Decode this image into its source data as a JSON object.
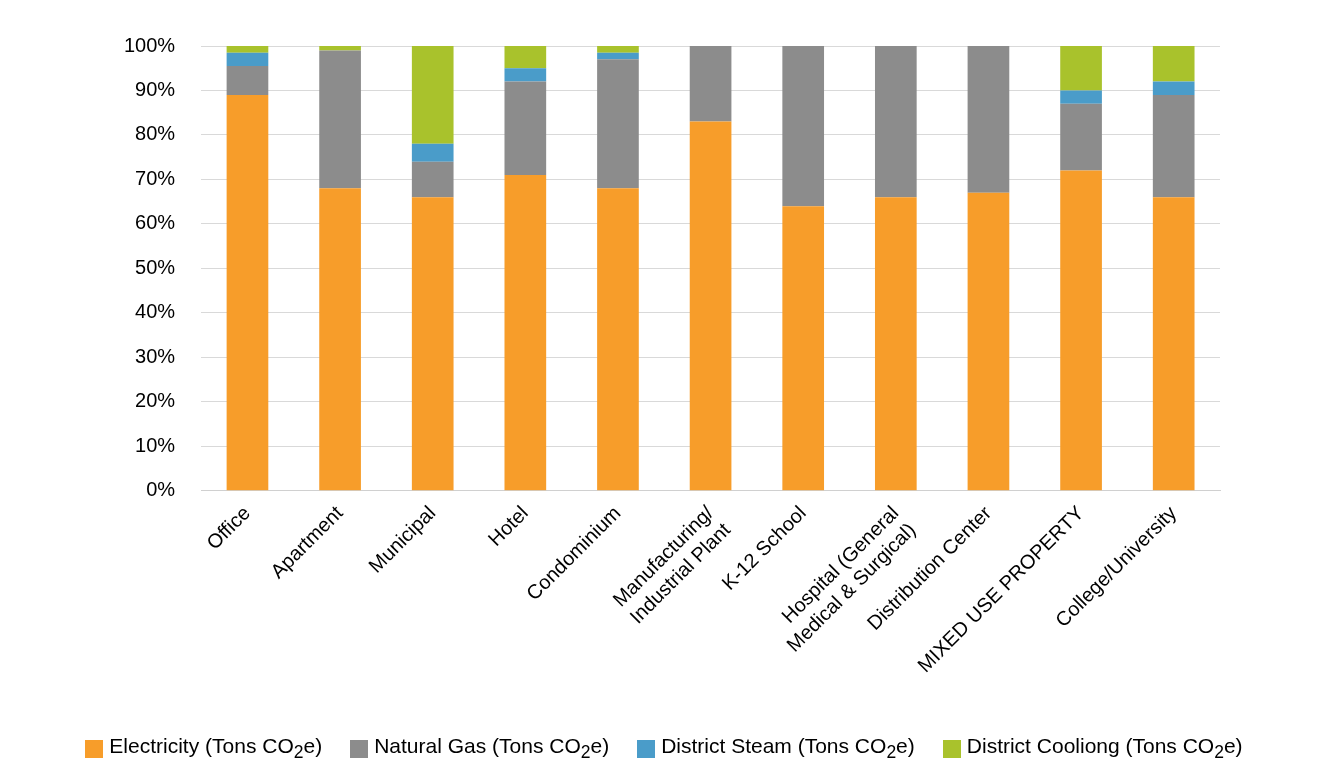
{
  "chart_data": {
    "type": "bar",
    "stacked": true,
    "categories": [
      "Office",
      "Apartment",
      "Municipal",
      "Hotel",
      "Condominium",
      "Manufacturing/\nIndustrial Plant",
      "K-12 School",
      "Hospital (General\nMedical & Surgical)",
      "Distribution Center",
      "MIXED USE PROPERTY",
      "College/University"
    ],
    "series": [
      {
        "name": "Electricity (Tons CO$_{2}$e)",
        "color": "#f79d2a",
        "values": [
          89,
          68,
          66,
          71,
          68,
          83,
          64,
          66,
          67,
          72,
          66
        ]
      },
      {
        "name": "Natural Gas (Tons CO$_{2}$e)",
        "color": "#8c8c8c",
        "values": [
          6.5,
          31,
          8,
          21,
          29,
          17,
          36,
          34,
          33,
          15,
          23
        ]
      },
      {
        "name": "District Steam (Tons CO$_{2}$e)",
        "color": "#4a9cc9",
        "values": [
          3,
          0,
          4,
          3,
          1.5,
          0,
          0,
          0,
          0,
          3,
          3
        ]
      },
      {
        "name": "District Cooliong (Tons CO$_{2}$e)",
        "color": "#a9c22c",
        "values": [
          1.5,
          1,
          22,
          5,
          1.5,
          0,
          0,
          0,
          0,
          10,
          8
        ]
      }
    ],
    "ylim": [
      0,
      100
    ],
    "yticks": [
      {
        "value": 0,
        "label": "0%"
      },
      {
        "value": 10,
        "label": "10%"
      },
      {
        "value": 20,
        "label": "20%"
      },
      {
        "value": 30,
        "label": "30%"
      },
      {
        "value": 40,
        "label": "40%"
      },
      {
        "value": 50,
        "label": "50%"
      },
      {
        "value": 60,
        "label": "60%"
      },
      {
        "value": 70,
        "label": "70%"
      },
      {
        "value": 80,
        "label": "80%"
      },
      {
        "value": 90,
        "label": "90%"
      },
      {
        "value": 100,
        "label": "100%"
      }
    ],
    "grid": "y",
    "legend": "bottom"
  }
}
